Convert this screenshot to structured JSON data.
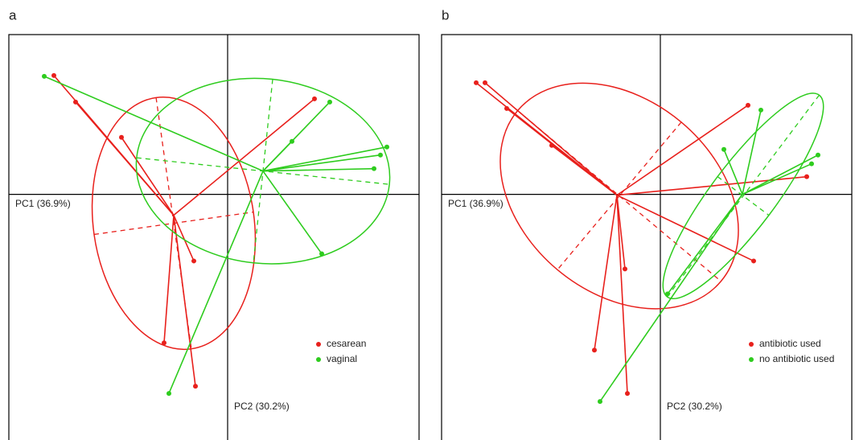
{
  "chart_data": [
    {
      "type": "scatter",
      "title": "a",
      "x_label": "PC1 (36.9%)",
      "y_label": "PC2 (30.2%)",
      "xlim": [
        -2.72,
        2.38
      ],
      "ylim": [
        -3.05,
        1.99
      ],
      "legend": "lower right",
      "series": [
        {
          "name": "cesarean",
          "color": "#e8201c",
          "x": [
            -2.16,
            -1.89,
            -1.32,
            1.08,
            -0.42,
            -0.79,
            -0.4
          ],
          "y": [
            1.48,
            1.15,
            0.71,
            1.19,
            -0.83,
            -1.85,
            -2.39
          ],
          "center": [
            -0.67,
            -0.26
          ],
          "ellipse": {
            "cx": -0.67,
            "cy": -0.36,
            "rx": 1.0,
            "ry": 1.58,
            "angle": 8
          }
        },
        {
          "name": "vaginal",
          "color": "#2ecc1e",
          "x": [
            -2.28,
            1.27,
            0.8,
            1.98,
            1.9,
            1.82,
            1.17,
            -0.73
          ],
          "y": [
            1.47,
            1.15,
            0.66,
            0.59,
            0.49,
            0.32,
            -0.74,
            -2.48
          ],
          "center": [
            0.44,
            0.29
          ],
          "ellipse": {
            "cx": 0.44,
            "cy": 0.29,
            "rx": 1.58,
            "ry": 1.15,
            "angle": -6
          }
        }
      ]
    },
    {
      "type": "scatter",
      "title": "b",
      "x_label": "PC1 (36.9%)",
      "y_label": "PC2 (30.2%)",
      "xlim": [
        -2.72,
        2.38
      ],
      "ylim": [
        -3.05,
        1.99
      ],
      "legend": "lower right",
      "series": [
        {
          "name": "antibiotic used",
          "color": "#e8201c",
          "x": [
            -2.29,
            -2.18,
            -1.91,
            -1.35,
            1.09,
            1.82,
            1.16,
            -0.44,
            -0.82,
            -0.41
          ],
          "y": [
            1.39,
            1.39,
            1.07,
            0.61,
            1.11,
            0.22,
            -0.83,
            -0.93,
            -1.94,
            -2.48
          ],
          "center": [
            -0.54,
            -0.01
          ],
          "ellipse": {
            "cx": -0.51,
            "cy": -0.02,
            "rx": 1.65,
            "ry": 1.2,
            "angle": -40
          }
        },
        {
          "name": "no antibiotic used",
          "color": "#2ecc1e",
          "x": [
            0.79,
            1.25,
            1.96,
            1.88,
            0.09,
            -0.75
          ],
          "y": [
            0.56,
            1.05,
            0.49,
            0.38,
            -1.24,
            -2.58
          ],
          "center": [
            1.02,
            0.0
          ],
          "ellipse": {
            "cx": 1.03,
            "cy": -0.02,
            "rx": 1.57,
            "ry": 0.4,
            "angle": 53
          }
        }
      ]
    }
  ]
}
